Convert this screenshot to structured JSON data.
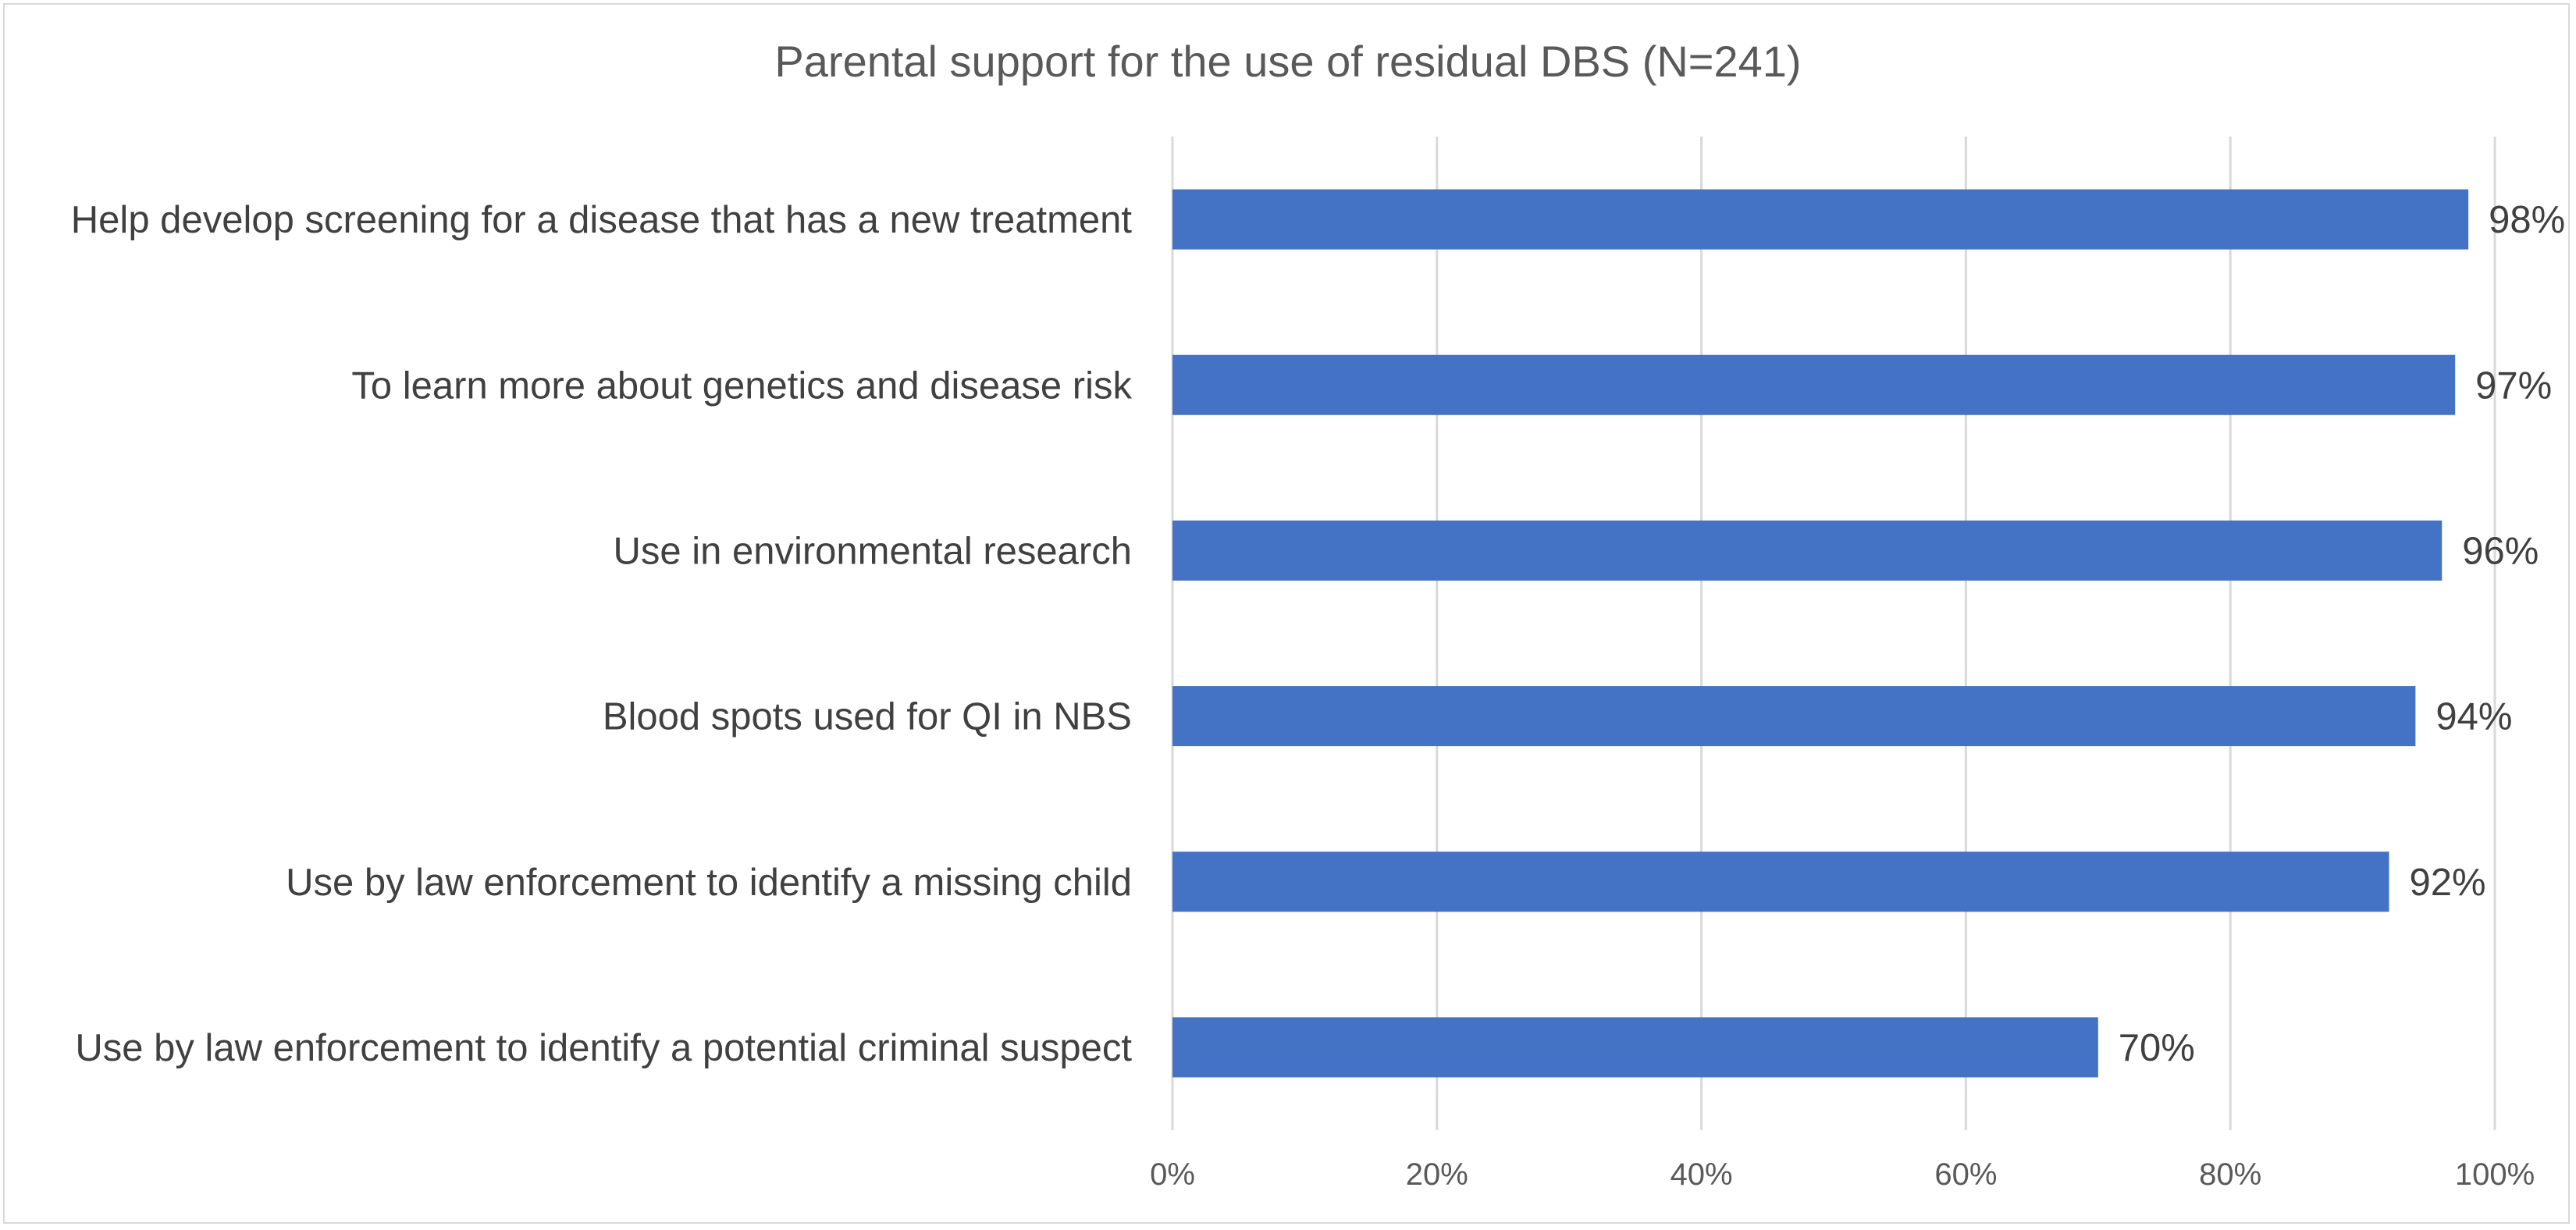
{
  "chart_data": {
    "type": "bar",
    "orientation": "horizontal",
    "title": "Parental support for the use of residual DBS (N=241)",
    "categories": [
      "Help develop screening for a disease that has a new treatment",
      "To learn more about genetics and disease risk",
      "Use in environmental research",
      "Blood spots used for QI in NBS",
      "Use by law enforcement to identify a missing child",
      "Use by law enforcement to identify a potential criminal suspect"
    ],
    "values": [
      98,
      97,
      96,
      94,
      92,
      70
    ],
    "data_labels": [
      "98%",
      "97%",
      "96%",
      "94%",
      "92%",
      "70%"
    ],
    "xlim": [
      0,
      100
    ],
    "x_ticks": [
      0,
      20,
      40,
      60,
      80,
      100
    ],
    "x_tick_labels": [
      "0%",
      "20%",
      "40%",
      "60%",
      "80%",
      "100%"
    ],
    "xlabel": "",
    "ylabel": "",
    "grid": "vertical",
    "legend": "none",
    "bar_color": "#4472C4"
  }
}
